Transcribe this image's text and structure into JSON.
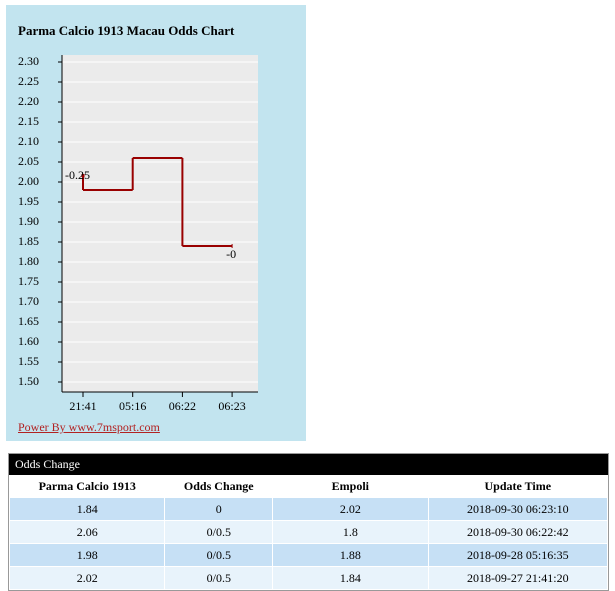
{
  "chart_data": {
    "type": "step-line",
    "title": "Parma Calcio 1913 Macau Odds Chart",
    "categories": [
      "21:41",
      "05:16",
      "06:22",
      "06:23"
    ],
    "values": [
      2.02,
      1.98,
      2.06,
      1.84
    ],
    "point_labels": [
      "-0.25",
      null,
      null,
      "-0"
    ],
    "color": "#990000",
    "ylim": [
      1.475,
      2.3175
    ],
    "yticks": [
      {
        "value": 1.5,
        "label": "1.50"
      },
      1.55,
      {
        "value": 1.6,
        "label": "1.60"
      },
      1.65,
      {
        "value": 1.7,
        "label": "1.70"
      },
      1.75,
      {
        "value": 1.8,
        "label": "1.80"
      },
      1.85,
      {
        "value": 1.9,
        "label": "1.90"
      },
      1.95,
      {
        "value": 2.0,
        "label": "2.00"
      },
      2.05,
      {
        "value": 2.1,
        "label": "2.10"
      },
      2.15,
      {
        "value": 2.2,
        "label": "2.20"
      },
      2.25,
      {
        "value": 2.3,
        "label": "2.30"
      }
    ],
    "grid": true,
    "footer": "Power By www.7msport.com"
  },
  "table": {
    "title": "Odds Change",
    "columns": [
      "Parma Calcio 1913",
      "Odds Change",
      "Empoli",
      "Update Time"
    ],
    "rows": [
      [
        "1.84",
        "0",
        "2.02",
        "2018-09-30 06:23:10"
      ],
      [
        "2.06",
        "0/0.5",
        "1.8",
        "2018-09-30 06:22:42"
      ],
      [
        "1.98",
        "0/0.5",
        "1.88",
        "2018-09-28 05:16:35"
      ],
      [
        "2.02",
        "0/0.5",
        "1.84",
        "2018-09-27 21:41:20"
      ]
    ]
  }
}
